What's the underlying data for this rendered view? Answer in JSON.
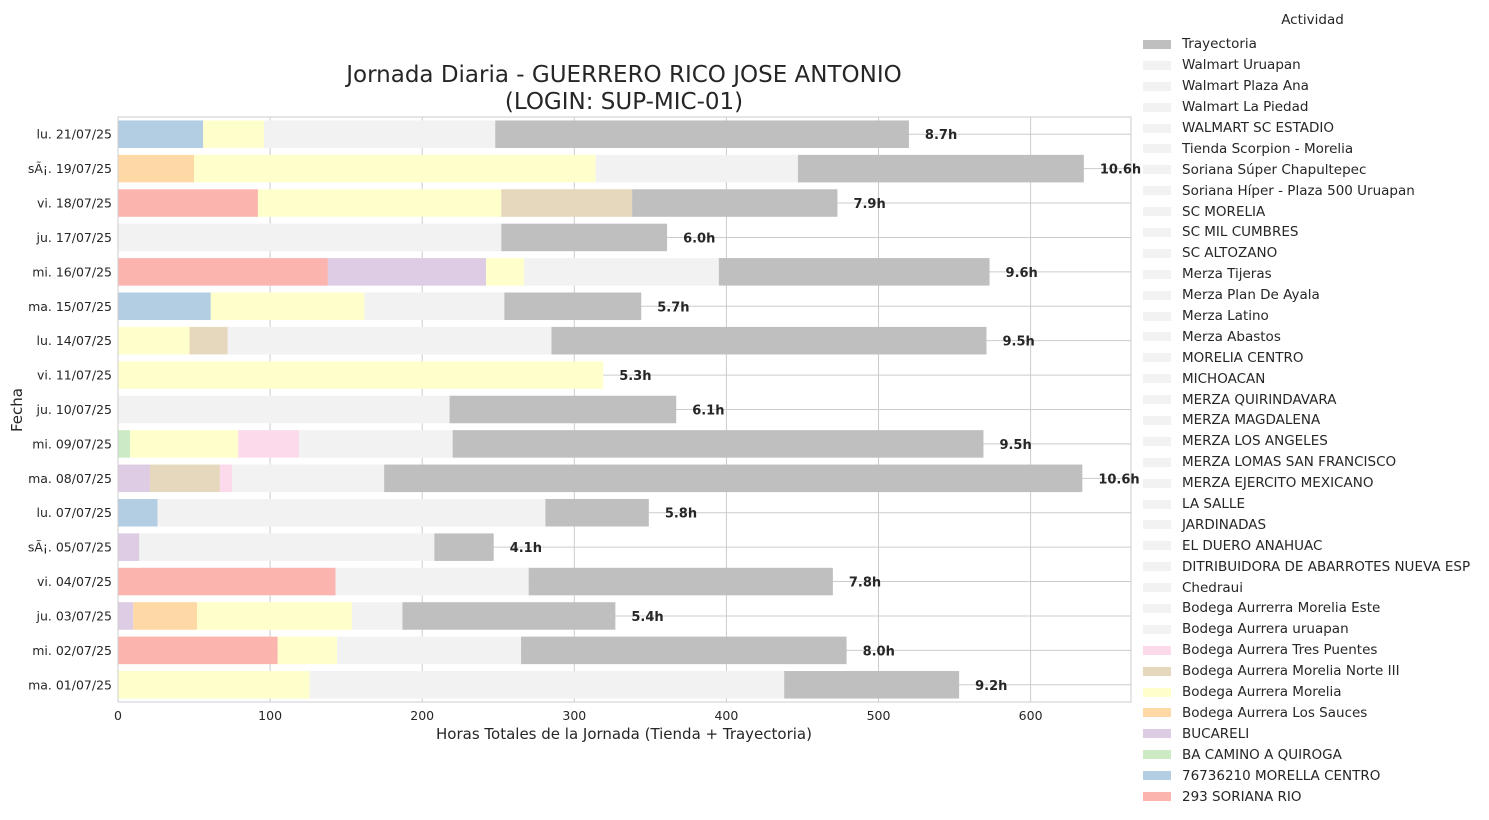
{
  "chart_data": {
    "type": "bar",
    "orientation": "horizontal",
    "stacked": true,
    "title": "Jornada Diaria - GUERRERO RICO JOSE ANTONIO",
    "subtitle": "(LOGIN: SUP-MIC-01)",
    "xlabel": "Horas Totales de la Jornada (Tienda + Trayectoria)",
    "ylabel": "Fecha",
    "xlim": [
      0,
      666
    ],
    "xticks": [
      "0",
      "100",
      "200",
      "300",
      "400",
      "500",
      "600"
    ],
    "grid": true,
    "legend_title": "Actividad",
    "legend_position": "right",
    "legend": [
      {
        "name": "Trayectoria",
        "color": "#bfbfbf"
      },
      {
        "name": "Walmart Uruapan",
        "color": "#f2f2f2"
      },
      {
        "name": "Walmart Plaza Ana",
        "color": "#f2f2f2"
      },
      {
        "name": "Walmart La Piedad",
        "color": "#f2f2f2"
      },
      {
        "name": "WALMART SC ESTADIO",
        "color": "#f2f2f2"
      },
      {
        "name": "Tienda Scorpion - Morelia",
        "color": "#f2f2f2"
      },
      {
        "name": "Soriana Súper Chapultepec",
        "color": "#f2f2f2"
      },
      {
        "name": "Soriana Híper - Plaza 500 Uruapan",
        "color": "#f2f2f2"
      },
      {
        "name": "SC MORELIA",
        "color": "#f2f2f2"
      },
      {
        "name": "SC MIL CUMBRES",
        "color": "#f2f2f2"
      },
      {
        "name": "SC ALTOZANO",
        "color": "#f2f2f2"
      },
      {
        "name": "Merza Tijeras",
        "color": "#f2f2f2"
      },
      {
        "name": "Merza Plan De Ayala",
        "color": "#f2f2f2"
      },
      {
        "name": "Merza Latino",
        "color": "#f2f2f2"
      },
      {
        "name": "Merza Abastos",
        "color": "#f2f2f2"
      },
      {
        "name": "MORELIA CENTRO",
        "color": "#f2f2f2"
      },
      {
        "name": "MICHOACAN",
        "color": "#f2f2f2"
      },
      {
        "name": "MERZA QUIRINDAVARA",
        "color": "#f2f2f2"
      },
      {
        "name": "MERZA MAGDALENA",
        "color": "#f2f2f2"
      },
      {
        "name": "MERZA LOS ANGELES",
        "color": "#f2f2f2"
      },
      {
        "name": "MERZA LOMAS SAN FRANCISCO",
        "color": "#f2f2f2"
      },
      {
        "name": "MERZA EJERCITO MEXICANO",
        "color": "#f2f2f2"
      },
      {
        "name": "LA SALLE",
        "color": "#f2f2f2"
      },
      {
        "name": "JARDINADAS",
        "color": "#f2f2f2"
      },
      {
        "name": "EL DUERO ANAHUAC",
        "color": "#f2f2f2"
      },
      {
        "name": "DITRIBUIDORA DE ABARROTES NUEVA ESP",
        "color": "#f2f2f2"
      },
      {
        "name": "Chedraui",
        "color": "#f2f2f2"
      },
      {
        "name": "Bodega Aurrerra Morelia Este",
        "color": "#f2f2f2"
      },
      {
        "name": "Bodega Aurrera uruapan",
        "color": "#f2f2f2"
      },
      {
        "name": "Bodega Aurrera Tres Puentes",
        "color": "#fcdaec"
      },
      {
        "name": "Bodega Aurrera Morelia Norte III",
        "color": "#e5d8bd"
      },
      {
        "name": "Bodega Aurrera Morelia",
        "color": "#ffffcc"
      },
      {
        "name": "Bodega Aurrera Los Sauces",
        "color": "#fed9a6"
      },
      {
        "name": "BUCARELI",
        "color": "#decbe4"
      },
      {
        "name": "BA CAMINO A QUIROGA",
        "color": "#ccebc5"
      },
      {
        "name": "76736210 MORELLA CENTRO",
        "color": "#b3cde3"
      },
      {
        "name": "293 SORIANA RIO",
        "color": "#fbb4ae"
      }
    ],
    "categories": [
      "lu. 21/07/25",
      "sÃ¡. 19/07/25",
      "vi. 18/07/25",
      "ju. 17/07/25",
      "mi. 16/07/25",
      "ma. 15/07/25",
      "lu. 14/07/25",
      "vi. 11/07/25",
      "ju. 10/07/25",
      "mi. 09/07/25",
      "ma. 08/07/25",
      "lu. 07/07/25",
      "sÃ¡. 05/07/25",
      "vi. 04/07/25",
      "ju. 03/07/25",
      "mi. 02/07/25",
      "ma. 01/07/25"
    ],
    "bars": [
      {
        "total_label": "8.7h",
        "segments": [
          {
            "v": 56,
            "c": "#b3cde3"
          },
          {
            "v": 40,
            "c": "#ffffcc"
          },
          {
            "v": 152,
            "c": "#f2f2f2"
          },
          {
            "v": 272,
            "c": "#bfbfbf"
          }
        ]
      },
      {
        "total_label": "10.6h",
        "segments": [
          {
            "v": 50,
            "c": "#fed9a6"
          },
          {
            "v": 264,
            "c": "#ffffcc"
          },
          {
            "v": 133,
            "c": "#f2f2f2"
          },
          {
            "v": 188,
            "c": "#bfbfbf"
          }
        ]
      },
      {
        "total_label": "7.9h",
        "segments": [
          {
            "v": 92,
            "c": "#fbb4ae"
          },
          {
            "v": 160,
            "c": "#ffffcc"
          },
          {
            "v": 86,
            "c": "#e5d8bd"
          },
          {
            "v": 135,
            "c": "#bfbfbf"
          }
        ]
      },
      {
        "total_label": "6.0h",
        "segments": [
          {
            "v": 252,
            "c": "#f2f2f2"
          },
          {
            "v": 109,
            "c": "#bfbfbf"
          }
        ]
      },
      {
        "total_label": "9.6h",
        "segments": [
          {
            "v": 138,
            "c": "#fbb4ae"
          },
          {
            "v": 104,
            "c": "#decbe4"
          },
          {
            "v": 25,
            "c": "#ffffcc"
          },
          {
            "v": 128,
            "c": "#f2f2f2"
          },
          {
            "v": 178,
            "c": "#bfbfbf"
          }
        ]
      },
      {
        "total_label": "5.7h",
        "segments": [
          {
            "v": 61,
            "c": "#b3cde3"
          },
          {
            "v": 101,
            "c": "#ffffcc"
          },
          {
            "v": 92,
            "c": "#f2f2f2"
          },
          {
            "v": 90,
            "c": "#bfbfbf"
          }
        ]
      },
      {
        "total_label": "9.5h",
        "segments": [
          {
            "v": 47,
            "c": "#ffffcc"
          },
          {
            "v": 25,
            "c": "#e5d8bd"
          },
          {
            "v": 213,
            "c": "#f2f2f2"
          },
          {
            "v": 286,
            "c": "#bfbfbf"
          }
        ]
      },
      {
        "total_label": "5.3h",
        "segments": [
          {
            "v": 319,
            "c": "#ffffcc"
          }
        ]
      },
      {
        "total_label": "6.1h",
        "segments": [
          {
            "v": 218,
            "c": "#f2f2f2"
          },
          {
            "v": 149,
            "c": "#bfbfbf"
          }
        ]
      },
      {
        "total_label": "9.5h",
        "segments": [
          {
            "v": 8,
            "c": "#ccebc5"
          },
          {
            "v": 71,
            "c": "#ffffcc"
          },
          {
            "v": 40,
            "c": "#fcdaec"
          },
          {
            "v": 101,
            "c": "#f2f2f2"
          },
          {
            "v": 349,
            "c": "#bfbfbf"
          }
        ]
      },
      {
        "total_label": "10.6h",
        "segments": [
          {
            "v": 21,
            "c": "#decbe4"
          },
          {
            "v": 46,
            "c": "#e5d8bd"
          },
          {
            "v": 8,
            "c": "#fcdaec"
          },
          {
            "v": 100,
            "c": "#f2f2f2"
          },
          {
            "v": 459,
            "c": "#bfbfbf"
          }
        ]
      },
      {
        "total_label": "5.8h",
        "segments": [
          {
            "v": 26,
            "c": "#b3cde3"
          },
          {
            "v": 255,
            "c": "#f2f2f2"
          },
          {
            "v": 68,
            "c": "#bfbfbf"
          }
        ]
      },
      {
        "total_label": "4.1h",
        "segments": [
          {
            "v": 14,
            "c": "#decbe4"
          },
          {
            "v": 194,
            "c": "#f2f2f2"
          },
          {
            "v": 39,
            "c": "#bfbfbf"
          }
        ]
      },
      {
        "total_label": "7.8h",
        "segments": [
          {
            "v": 143,
            "c": "#fbb4ae"
          },
          {
            "v": 127,
            "c": "#f2f2f2"
          },
          {
            "v": 200,
            "c": "#bfbfbf"
          }
        ]
      },
      {
        "total_label": "5.4h",
        "segments": [
          {
            "v": 10,
            "c": "#decbe4"
          },
          {
            "v": 42,
            "c": "#fed9a6"
          },
          {
            "v": 102,
            "c": "#ffffcc"
          },
          {
            "v": 33,
            "c": "#f2f2f2"
          },
          {
            "v": 140,
            "c": "#bfbfbf"
          }
        ]
      },
      {
        "total_label": "8.0h",
        "segments": [
          {
            "v": 105,
            "c": "#fbb4ae"
          },
          {
            "v": 39,
            "c": "#ffffcc"
          },
          {
            "v": 121,
            "c": "#f2f2f2"
          },
          {
            "v": 214,
            "c": "#bfbfbf"
          }
        ]
      },
      {
        "total_label": "9.2h",
        "segments": [
          {
            "v": 126,
            "c": "#ffffcc"
          },
          {
            "v": 312,
            "c": "#f2f2f2"
          },
          {
            "v": 115,
            "c": "#bfbfbf"
          }
        ]
      }
    ]
  }
}
